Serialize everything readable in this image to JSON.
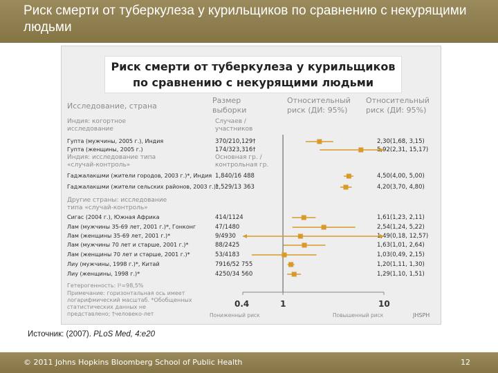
{
  "slide": {
    "title": "Риск смерти от туберкулеза у курильщиков по сравнению с некурящими людьми",
    "colors": {
      "header_bar": "#8c7c4e",
      "marker": "#d99a2a",
      "figure_bg": "#eeeeee"
    }
  },
  "figure": {
    "title_line1": "Риск смерти от туберкулеза у курильщиков",
    "title_line2": "по сравнению с некурящими людьми",
    "col_study": "Исследование, страна",
    "col_size_line1": "Размер",
    "col_size_line2": "выборки",
    "col_rr1_line1": "Относительный",
    "col_rr1_line2": "риск (ДИ: 95%)",
    "col_rr2_line1": "Относительный",
    "col_rr2_line2": "риск (ДИ: 95%)",
    "group1_line1": "Индия: когортное",
    "group1_line2": "исследование",
    "group1_n_line1": "Случаев /",
    "group1_n_line2": "участников",
    "group2_line1": "Индия: исследование типа",
    "group2_line2": "«случай-контроль»",
    "group2_n_line1": "Основная гр. /",
    "group2_n_line2": "контрольная гр.",
    "group3_line1": "Другие страны: исследование",
    "group3_line2": "типа «случай-контроль»",
    "heterogeneity": "Гетерогенность: I²=98,5%",
    "note_line1": "Примечание: горизонтальная ось имеет",
    "note_line2": "логарифмический масштаб. *Обобщенных",
    "note_line3": "статистических данных не",
    "note_line4": "представлено; †человеко-лет",
    "axis_caption_left": "Пониженный риск",
    "axis_caption_right": "Повышенный риск",
    "logo": "JHSPH"
  },
  "chart_data": {
    "type": "forest",
    "x_scale": "log",
    "xlim": [
      0.4,
      10
    ],
    "x_ticks": [
      "0.4",
      "1",
      "10"
    ],
    "reference_line": 1,
    "rows": [
      {
        "study": "Гупта (мужчины, 2005 г.), Индия",
        "n": "370/210,129†",
        "rr": 2.3,
        "lo": 1.68,
        "hi": 3.15,
        "label": "2,30(1,68, 3,15)"
      },
      {
        "study": "Гупта (женщины, 2005 г.)",
        "n": "174/323,316†",
        "rr": 5.92,
        "lo": 2.31,
        "hi": 15.17,
        "label": "5,92(2,31, 15,17)"
      },
      {
        "study": "Гаджалакшми (жители городов, 2003 г.)*, Индия",
        "n": "1,840/16 488",
        "rr": 4.5,
        "lo": 4.0,
        "hi": 5.0,
        "label": "4,50(4,00, 5,00)"
      },
      {
        "study": "Гаджалакшми (жители сельских районов, 2003 г.)*",
        "n": "1,529/13 363",
        "rr": 4.2,
        "lo": 3.7,
        "hi": 4.8,
        "label": "4,20(3,70, 4,80)"
      },
      {
        "study": "Сигас (2004 г.), Южная Африка",
        "n": "414/1124",
        "rr": 1.61,
        "lo": 1.23,
        "hi": 2.11,
        "label": "1,61(1,23, 2,11)"
      },
      {
        "study": "Лам (мужчины 35-69 лет, 2001 г.)*, Гонконг",
        "n": "47/1480",
        "rr": 2.54,
        "lo": 1.24,
        "hi": 5.22,
        "label": "2,54(1,24, 5,22)"
      },
      {
        "study": "Лам (женщины 35-69 лет, 2001 г.)*",
        "n": "9/4930",
        "rr": 1.49,
        "lo": 0.18,
        "hi": 12.57,
        "label": "1,49(0,18, 12,57)"
      },
      {
        "study": "Лам (мужчины 70 лет и старше, 2001 г.)*",
        "n": "88/2425",
        "rr": 1.63,
        "lo": 1.01,
        "hi": 2.64,
        "label": "1,63(1,01, 2,64)"
      },
      {
        "study": "Лам (женщины 70 лет и старше, 2001 г.)*",
        "n": "53/4183",
        "rr": 1.03,
        "lo": 0.49,
        "hi": 2.15,
        "label": "1,03(0,49, 2,15)"
      },
      {
        "study": "Лиу (мужчины, 1998 г.)*, Китай",
        "n": "7916/52 755",
        "rr": 1.2,
        "lo": 1.11,
        "hi": 1.3,
        "label": "1,20(1,11, 1,30)"
      },
      {
        "study": "Лиу (женщины, 1998 г.)*",
        "n": "4250/34 560",
        "rr": 1.29,
        "lo": 1.1,
        "hi": 1.51,
        "label": "1,29(1,10, 1,51)"
      }
    ]
  },
  "source": {
    "prefix": "Источник: (2007). ",
    "journal": "PLoS Med, 4:e20"
  },
  "footer": {
    "copyright": "© 2011 Johns Hopkins Bloomberg School of Public Health",
    "page": "12"
  }
}
